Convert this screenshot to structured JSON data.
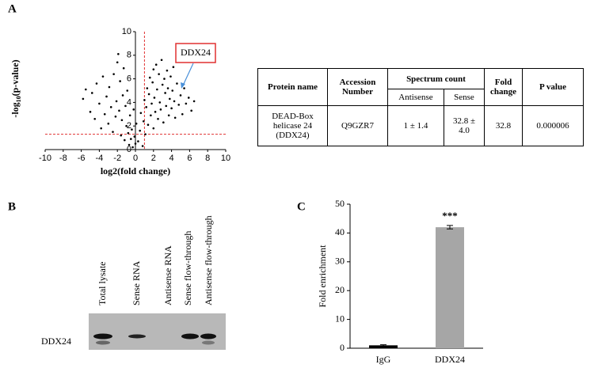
{
  "panel_labels": [
    "A",
    "B",
    "C"
  ],
  "chart_data": [
    {
      "type": "scatter",
      "xlabel": "log2(fold change)",
      "ylabel_parts": [
        "-log",
        "10",
        "(p-value)"
      ],
      "xlim": [
        -10,
        10
      ],
      "ylim": [
        0,
        10
      ],
      "xticks": [
        -10,
        -8,
        -6,
        -4,
        -2,
        0,
        2,
        4,
        6,
        8,
        10
      ],
      "yticks": [
        0,
        2,
        4,
        6,
        8,
        10
      ],
      "color": "#000000",
      "threshold_color": "#e03030",
      "threshold_x": 1,
      "threshold_y": 1.3,
      "annotation": "DDX24",
      "x": [
        -5.8,
        -5.5,
        -5,
        -4.8,
        -4.5,
        -4.3,
        -4,
        -3.8,
        -3.6,
        -3.4,
        -3.2,
        -3,
        -2.9,
        -2.7,
        -2.5,
        -2.4,
        -2.2,
        -2.1,
        -2,
        -1.9,
        -1.8,
        -1.7,
        -1.6,
        -1.5,
        -1.4,
        -1.3,
        -1.2,
        -1.1,
        -1,
        -0.9,
        -0.8,
        -0.7,
        -0.6,
        -0.5,
        -0.4,
        -0.3,
        -0.2,
        -0.1,
        0,
        0.1,
        0.3,
        0.5,
        0.6,
        0.8,
        0.9,
        1,
        1.1,
        1.2,
        1.3,
        1.4,
        1.5,
        1.6,
        1.7,
        1.8,
        1.9,
        2,
        2,
        2.1,
        2.2,
        2.3,
        2.4,
        2.5,
        2.6,
        2.7,
        2.8,
        2.9,
        3,
        3.1,
        3.2,
        3.3,
        3.4,
        3.5,
        3.6,
        3.7,
        3.8,
        3.9,
        4,
        4.1,
        4.2,
        4.3,
        4.4,
        4.6,
        4.8,
        5,
        5.2,
        5.4,
        5.6,
        5.9,
        6.2,
        6.5
      ],
      "values": [
        4.3,
        5.1,
        3.2,
        4.8,
        2.6,
        5.6,
        3.9,
        1.8,
        6.2,
        3,
        4.5,
        2.2,
        5.3,
        3.6,
        1.5,
        6.4,
        2.8,
        4.1,
        7.4,
        8.1,
        3.3,
        5.8,
        1.2,
        2.5,
        4.6,
        6.9,
        0.8,
        3.7,
        2,
        5,
        1.4,
        0.4,
        2.9,
        0.9,
        1.7,
        0.2,
        3.4,
        1.1,
        0.5,
        2.2,
        0.7,
        1.6,
        3.1,
        0.3,
        2.4,
        4.2,
        1.3,
        3.6,
        5.2,
        2.1,
        4.7,
        6.1,
        2.9,
        3.9,
        5.7,
        1.8,
        6.8,
        4.4,
        3.2,
        7.2,
        5.1,
        2.6,
        6.4,
        4,
        3.4,
        7.6,
        5.5,
        2.3,
        6,
        4.8,
        3.7,
        6.7,
        5.2,
        2.9,
        4.3,
        6.2,
        3.5,
        5,
        7,
        4.1,
        2.7,
        5.6,
        3.8,
        4.6,
        3,
        5.2,
        3.9,
        4.4,
        3.3,
        4.1
      ]
    },
    {
      "type": "bar",
      "ylabel": "Fold enrichment",
      "categories": [
        "IgG",
        "DDX24"
      ],
      "values": [
        1,
        42
      ],
      "errors": [
        0.2,
        0.6
      ],
      "colors": [
        "#000000",
        "#a6a6a6"
      ],
      "ylim": [
        0,
        50
      ],
      "yticks": [
        0,
        10,
        20,
        30,
        40,
        50
      ],
      "annotation": "***"
    }
  ],
  "table": {
    "header": [
      "Protein name",
      "Accession Number",
      "Spectrum count",
      "Fold change",
      "P value"
    ],
    "subheader": [
      "Antisense",
      "Sense"
    ],
    "rows": [
      [
        "DEAD-Box helicase 24 (DDX24)",
        "Q9GZR7",
        "1 ± 1.4",
        "32.8 ± 4.0",
        "32.8",
        "0.000006"
      ]
    ]
  },
  "blot": {
    "lanes": [
      "Total lysate",
      "Sense RNA",
      "Antisense RNA",
      "Sense flow-through",
      "Antisense flow-through"
    ],
    "row_label": "DDX24"
  }
}
